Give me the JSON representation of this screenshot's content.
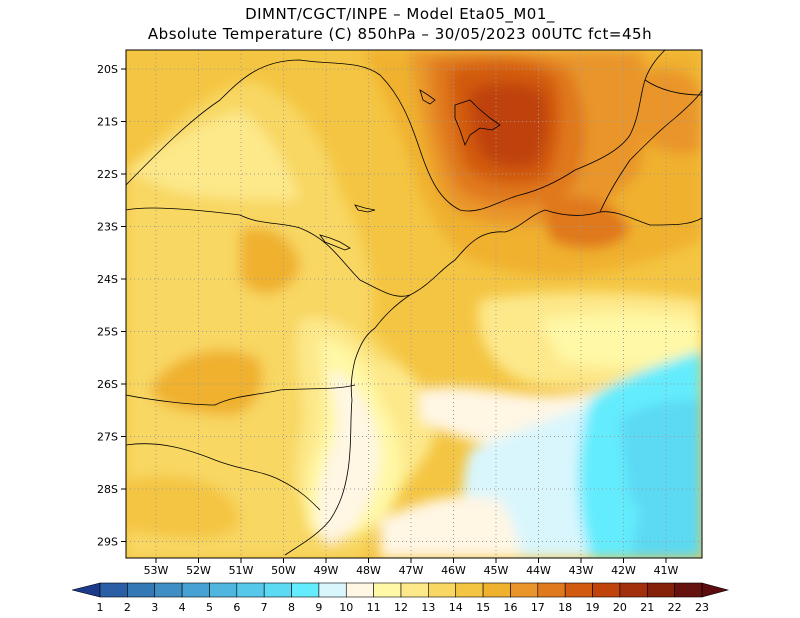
{
  "header": {
    "line1": "DIMNT/CGCT/INPE –  Model Eta05_M01_",
    "line2": "Absolute Temperature (C) 850hPa –  30/05/2023 00UTC fct=45h"
  },
  "map": {
    "lat_labels": [
      "20S",
      "21S",
      "22S",
      "23S",
      "24S",
      "25S",
      "26S",
      "27S",
      "28S",
      "29S"
    ],
    "lon_labels": [
      "53W",
      "52W",
      "51W",
      "50W",
      "49W",
      "48W",
      "47W",
      "46W",
      "45W",
      "44W",
      "43W",
      "42W",
      "41W"
    ]
  },
  "colorbar": {
    "labels": [
      "1",
      "2",
      "3",
      "4",
      "5",
      "6",
      "7",
      "8",
      "9",
      "10",
      "11",
      "12",
      "13",
      "14",
      "15",
      "16",
      "17",
      "18",
      "19",
      "20",
      "21",
      "22",
      "23"
    ],
    "colors": [
      "#1e3f8f",
      "#2a5fa5",
      "#3478b5",
      "#3f8fc4",
      "#47a2d3",
      "#4fb6df",
      "#56c9ea",
      "#5cd9f3",
      "#63ecfd",
      "#d9f6fd",
      "#fff6e4",
      "#fff8a6",
      "#fde88a",
      "#f8d762",
      "#f4c542",
      "#f0b12e",
      "#e9952c",
      "#e0781c",
      "#d25a0f",
      "#bf430b",
      "#a2300c",
      "#85210b",
      "#66120e"
    ],
    "under_color": "#1b3a8a",
    "over_color": "#5c0b0e"
  }
}
